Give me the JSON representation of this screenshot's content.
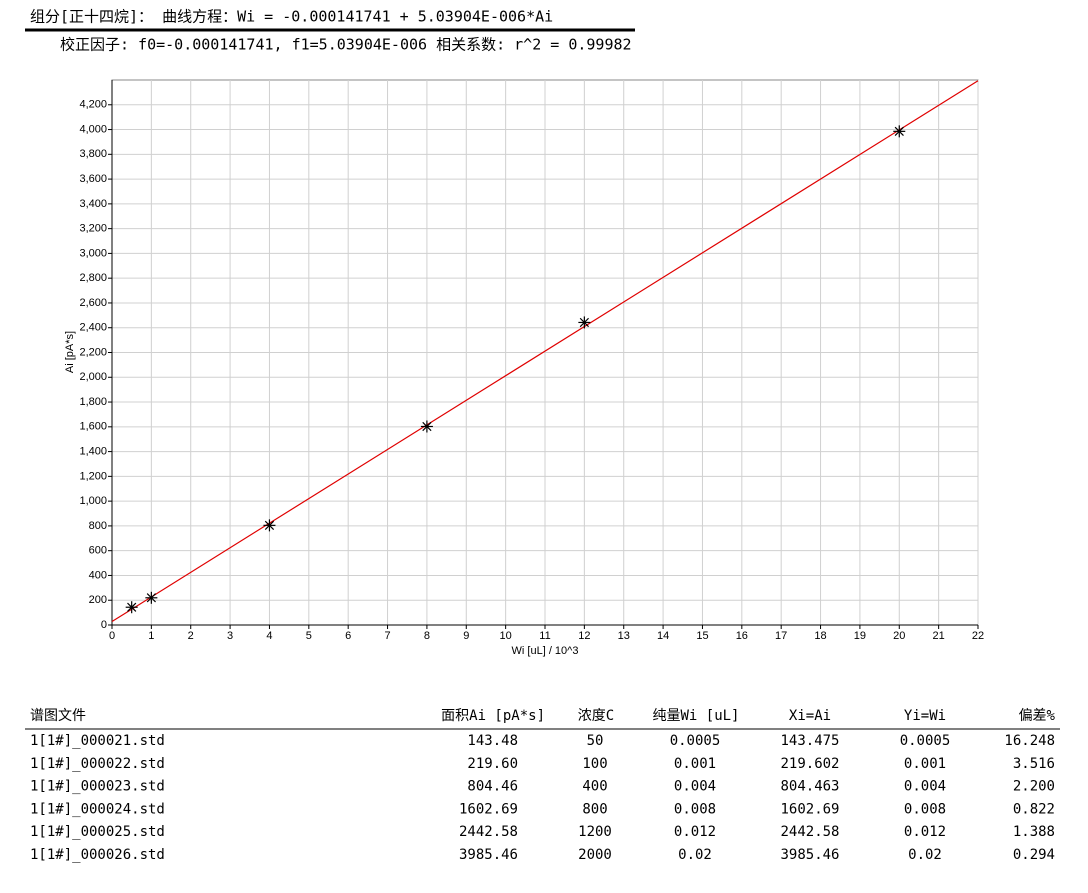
{
  "header": {
    "title": "组分[正十四烷]：  曲线方程：Wi = -0.000141741 + 5.03904E-006*Ai",
    "subtitle": "校正因子: f0=-0.000141741, f1=5.03904E-006  相关系数: r^2 = 0.99982"
  },
  "chart_data": {
    "type": "scatter",
    "x_label": "Wi [uL] / 10^3",
    "y_label": "Ai [pA*s]",
    "x": [
      0.5,
      1,
      4,
      8,
      12,
      20
    ],
    "values": [
      143.48,
      219.6,
      804.46,
      1602.69,
      2442.58,
      3985.46
    ],
    "color": "#000000",
    "fit_line": {
      "x": [
        0,
        22
      ],
      "values": [
        28.13,
        4394.0
      ],
      "color": "#e00000"
    },
    "xlim": [
      0,
      22
    ],
    "xticks": [
      0,
      1,
      2,
      3,
      4,
      5,
      6,
      7,
      8,
      9,
      10,
      11,
      12,
      13,
      14,
      15,
      16,
      17,
      18,
      19,
      20,
      21,
      22
    ],
    "ylim": [
      0,
      4400
    ],
    "yticks": [
      0,
      200,
      400,
      600,
      800,
      {
        "value": 1000,
        "label": "1,000"
      },
      {
        "value": 1200,
        "label": "1,200"
      },
      {
        "value": 1400,
        "label": "1,400"
      },
      {
        "value": 1600,
        "label": "1,600"
      },
      {
        "value": 1800,
        "label": "1,800"
      },
      {
        "value": 2000,
        "label": "2,000"
      },
      {
        "value": 2200,
        "label": "2,200"
      },
      {
        "value": 2400,
        "label": "2,400"
      },
      {
        "value": 2600,
        "label": "2,600"
      },
      {
        "value": 2800,
        "label": "2,800"
      },
      {
        "value": 3000,
        "label": "3,000"
      },
      {
        "value": 3200,
        "label": "3,200"
      },
      {
        "value": 3400,
        "label": "3,400"
      },
      {
        "value": 3600,
        "label": "3,600"
      },
      {
        "value": 3800,
        "label": "3,800"
      },
      {
        "value": 4000,
        "label": "4,000"
      },
      {
        "value": 4200,
        "label": "4,200"
      }
    ],
    "grid": true
  },
  "table": {
    "headers": [
      "谱图文件",
      "面积Ai [pA*s]",
      "浓度C",
      "纯量Wi [uL]",
      "Xi=Ai",
      "Yi=Wi",
      "偏差%"
    ],
    "rows": [
      [
        "1[1#]_000021.std",
        "143.48",
        "50",
        "0.0005",
        "143.475",
        "0.0005",
        "16.248"
      ],
      [
        "1[1#]_000022.std",
        "219.60",
        "100",
        "0.001",
        "219.602",
        "0.001",
        "3.516"
      ],
      [
        "1[1#]_000023.std",
        "804.46",
        "400",
        "0.004",
        "804.463",
        "0.004",
        "2.200"
      ],
      [
        "1[1#]_000024.std",
        "1602.69",
        "800",
        "0.008",
        "1602.69",
        "0.008",
        "0.822"
      ],
      [
        "1[1#]_000025.std",
        "2442.58",
        "1200",
        "0.012",
        "2442.58",
        "0.012",
        "1.388"
      ],
      [
        "1[1#]_000026.std",
        "3985.46",
        "2000",
        "0.02",
        "3985.46",
        "0.02",
        "0.294"
      ]
    ]
  }
}
